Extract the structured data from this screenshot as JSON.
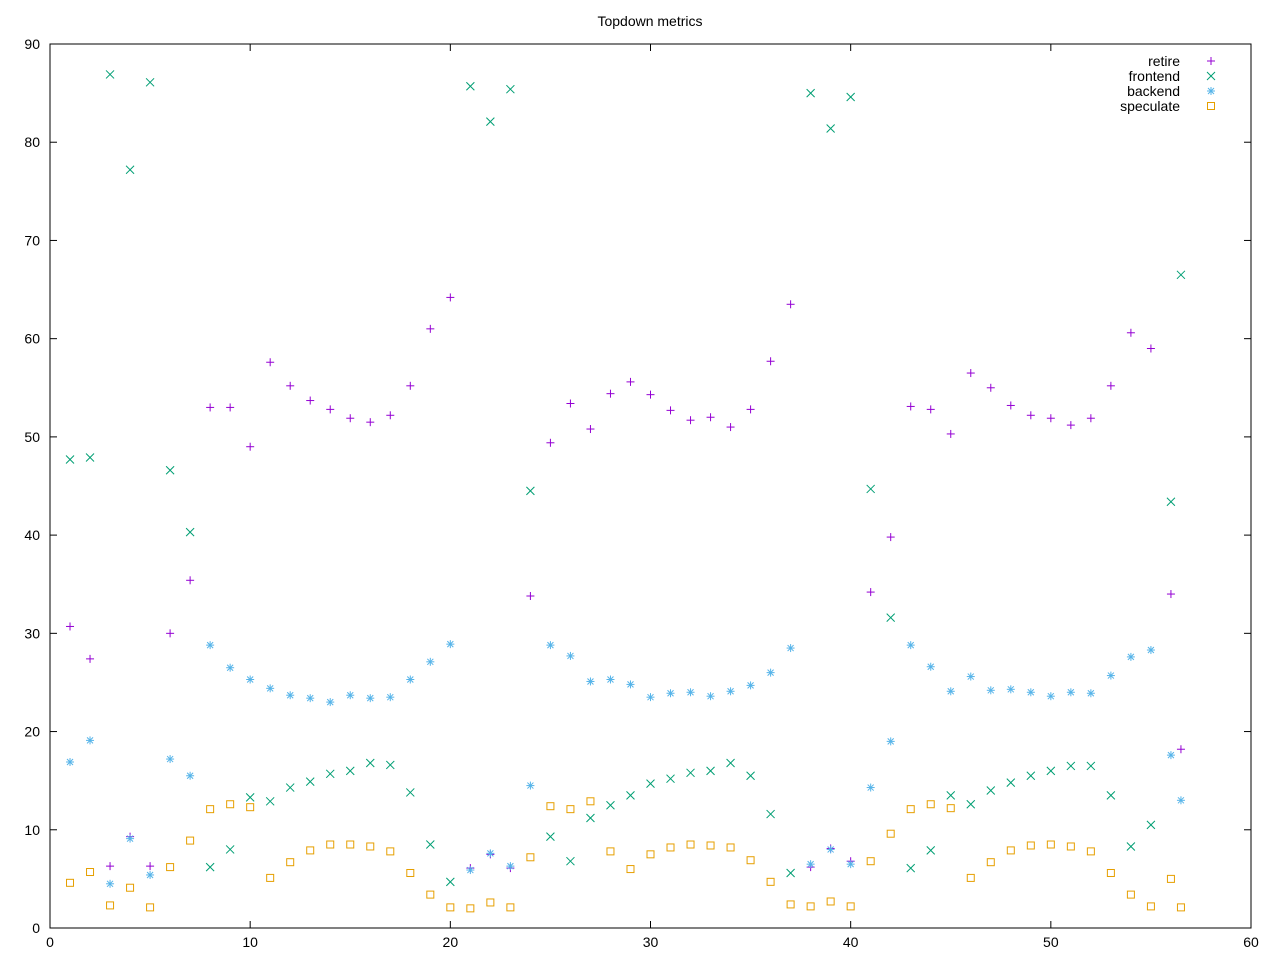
{
  "chart_data": {
    "type": "scatter",
    "title": "Topdown metrics",
    "xlabel": "",
    "ylabel": "",
    "xlim": [
      0,
      60
    ],
    "ylim": [
      0,
      90
    ],
    "xticks": [
      0,
      10,
      20,
      30,
      40,
      50,
      60
    ],
    "yticks": [
      0,
      10,
      20,
      30,
      40,
      50,
      60,
      70,
      80,
      90
    ],
    "grid": false,
    "legend_position": "top-right",
    "x": [
      1,
      2,
      3,
      4,
      5,
      6,
      7,
      8,
      9,
      10,
      11,
      12,
      13,
      14,
      15,
      16,
      17,
      18,
      19,
      20,
      21,
      22,
      23,
      24,
      25,
      26,
      27,
      28,
      29,
      30,
      31,
      32,
      33,
      34,
      35,
      36,
      37,
      38,
      39,
      40,
      41,
      42,
      43,
      44,
      45,
      46,
      47,
      48,
      49,
      50,
      51,
      52,
      53,
      54,
      55,
      56,
      56.5
    ],
    "series": [
      {
        "name": "retire",
        "marker": "plus",
        "color": "#9400d3",
        "values": [
          30.7,
          27.4,
          6.3,
          9.3,
          6.3,
          30.0,
          35.4,
          53.0,
          53.0,
          49.0,
          57.6,
          55.2,
          53.7,
          52.8,
          51.9,
          51.5,
          52.2,
          55.2,
          61.0,
          64.2,
          6.1,
          7.5,
          6.1,
          33.8,
          49.4,
          53.4,
          50.8,
          54.4,
          55.6,
          54.3,
          52.7,
          51.7,
          52.0,
          51.0,
          52.8,
          57.7,
          63.5,
          6.2,
          8.1,
          6.8,
          34.2,
          39.8,
          53.1,
          52.8,
          50.3,
          56.5,
          55.0,
          53.2,
          52.2,
          51.9,
          51.2,
          51.9,
          55.2,
          60.6,
          59.0,
          34.0,
          18.2
        ]
      },
      {
        "name": "frontend",
        "marker": "cross",
        "color": "#009e73",
        "values": [
          47.7,
          47.9,
          86.9,
          77.2,
          86.1,
          46.6,
          40.3,
          6.2,
          8.0,
          13.3,
          12.9,
          14.3,
          14.9,
          15.7,
          16.0,
          16.8,
          16.6,
          13.8,
          8.5,
          4.7,
          85.7,
          82.1,
          85.4,
          44.5,
          9.3,
          6.8,
          11.2,
          12.5,
          13.5,
          14.7,
          15.2,
          15.8,
          16.0,
          16.8,
          15.5,
          11.6,
          5.6,
          85.0,
          81.4,
          84.6,
          44.7,
          31.6,
          6.1,
          7.9,
          13.5,
          12.6,
          14.0,
          14.8,
          15.5,
          16.0,
          16.5,
          16.5,
          13.5,
          8.3,
          10.5,
          43.4,
          66.5
        ]
      },
      {
        "name": "backend",
        "marker": "star",
        "color": "#56b4e9",
        "values": [
          16.9,
          19.1,
          4.5,
          9.1,
          5.4,
          17.2,
          15.5,
          28.8,
          26.5,
          25.3,
          24.4,
          23.7,
          23.4,
          23.0,
          23.7,
          23.4,
          23.5,
          25.3,
          27.1,
          28.9,
          5.9,
          7.6,
          6.3,
          14.5,
          28.8,
          27.7,
          25.1,
          25.3,
          24.8,
          23.5,
          23.9,
          24.0,
          23.6,
          24.1,
          24.7,
          26.0,
          28.5,
          6.5,
          8.0,
          6.5,
          14.3,
          19.0,
          28.8,
          26.6,
          24.1,
          25.6,
          24.2,
          24.3,
          24.0,
          23.6,
          24.0,
          23.9,
          25.7,
          27.6,
          28.3,
          17.6,
          13.0
        ]
      },
      {
        "name": "speculate",
        "marker": "square",
        "color": "#e69f00",
        "values": [
          4.6,
          5.7,
          2.3,
          4.1,
          2.1,
          6.2,
          8.9,
          12.1,
          12.6,
          12.3,
          5.1,
          6.7,
          7.9,
          8.5,
          8.5,
          8.3,
          7.8,
          5.6,
          3.4,
          2.1,
          2.0,
          2.6,
          2.1,
          7.2,
          12.4,
          12.1,
          12.9,
          7.8,
          6.0,
          7.5,
          8.2,
          8.5,
          8.4,
          8.2,
          6.9,
          4.7,
          2.4,
          2.2,
          2.7,
          2.2,
          6.8,
          9.6,
          12.1,
          12.6,
          12.2,
          5.1,
          6.7,
          7.9,
          8.4,
          8.5,
          8.3,
          7.8,
          5.6,
          3.4,
          2.2,
          5.0,
          2.1
        ]
      }
    ]
  }
}
